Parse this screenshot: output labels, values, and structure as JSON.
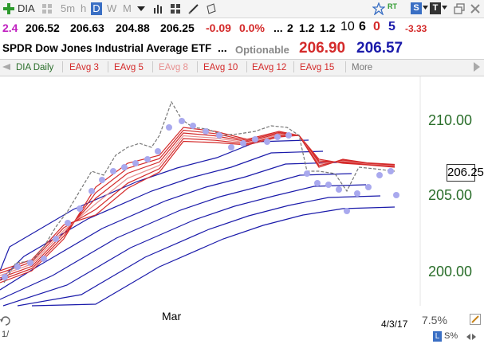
{
  "toolbar": {
    "symbol": "DIA",
    "timeframes": [
      "5m",
      "h",
      "D",
      "W",
      "M"
    ],
    "active_timeframe": "D",
    "icons": [
      "add-icon",
      "bar-chart-icon",
      "grid-icon",
      "pencil-icon",
      "notes-icon",
      "pin-icon",
      "rt-icon",
      "s-icon",
      "t-icon",
      "restore-icon",
      "close-icon"
    ],
    "rt_label": "RT",
    "s_label": "S",
    "t_label": "T"
  },
  "quote": {
    "leading": "2.4",
    "open": "206.52",
    "high": "206.63",
    "low": "204.88",
    "close": "206.25",
    "change": "-0.09",
    "change_pct": "0.0%",
    "ellipsis": "...",
    "n1": "2",
    "n2": "1.2",
    "n3": "1.2",
    "n4": "10",
    "n5": "6",
    "n6": "0",
    "n7": "5",
    "n8": "-3.33"
  },
  "namebar": {
    "name": "SPDR Dow Jones Industrial Average ETF",
    "ellipsis": "...",
    "optionable": "Optionable",
    "bid": "206.90",
    "ask": "206.57"
  },
  "tabs": [
    {
      "label": "DIA Daily",
      "color": "#2a6e2a"
    },
    {
      "label": "EAvg 3",
      "color": "#d42a2a"
    },
    {
      "label": "EAvg 5",
      "color": "#d42a2a"
    },
    {
      "label": "EAvg 8",
      "color": "#e89090"
    },
    {
      "label": "EAvg 10",
      "color": "#d42a2a"
    },
    {
      "label": "EAvg 12",
      "color": "#d42a2a"
    },
    {
      "label": "EAvg 15",
      "color": "#d42a2a"
    },
    {
      "label": "More",
      "color": "#777777"
    }
  ],
  "chart_data": {
    "type": "line",
    "y_ticks": [
      "210.00",
      "205.00",
      "200.00"
    ],
    "last_price": "206.25",
    "x_label": "Mar",
    "date_label": "4/3/17",
    "scale_label": "7.5%",
    "bottom_left": "1/",
    "bottom_right": [
      "L",
      "S%"
    ],
    "colors": {
      "price": "#777777",
      "dots": "#a9a9ee",
      "short_ema": "#d42a2a",
      "light_ema": "#e89090",
      "long_ema": "#1a1aaa"
    }
  }
}
